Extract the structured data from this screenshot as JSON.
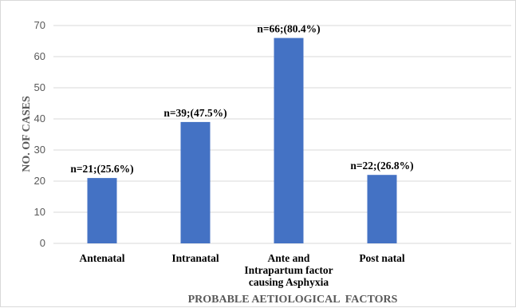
{
  "chart_data": {
    "type": "bar",
    "title": "",
    "categories": [
      [
        "Antenatal"
      ],
      [
        "Intranatal"
      ],
      [
        "Ante and",
        "Intrapartum factor",
        "causing Asphyxia"
      ],
      [
        "Post natal"
      ]
    ],
    "values": [
      21,
      39,
      66,
      22
    ],
    "data_labels": [
      "n=21;(25.6%)",
      "n=39;(47.5%)",
      "n=66;(80.4%)",
      "n=22;(26.8%)"
    ],
    "xlabel": "PROBABLE AETIOLOGICAL  FACTORS",
    "ylabel": "NO. OF CASES",
    "ylim": [
      0,
      70
    ],
    "yticks": [
      "0",
      "10",
      "20",
      "30",
      "40",
      "50",
      "60",
      "70"
    ],
    "grid": true,
    "legend": "none",
    "bar_color": "#4472c4",
    "grid_color": "#d9d9d9"
  }
}
